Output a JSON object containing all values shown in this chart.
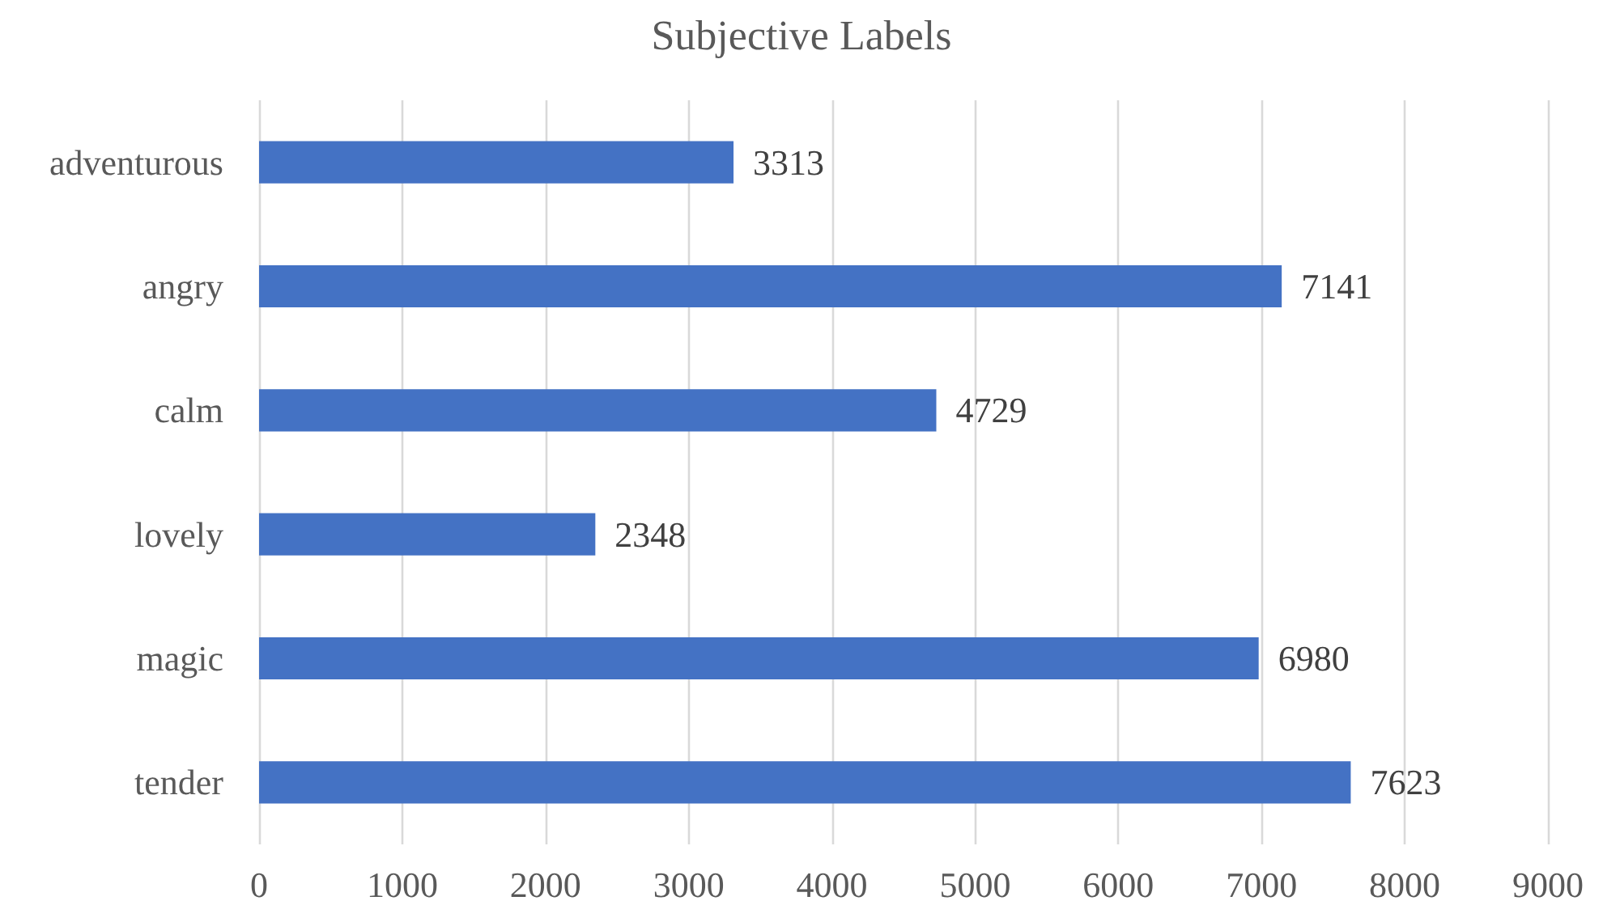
{
  "chart_data": {
    "type": "bar",
    "title": "Subjective Labels",
    "orientation": "horizontal",
    "categories": [
      "adventurous",
      "angry",
      "calm",
      "lovely",
      "magic",
      "tender"
    ],
    "values": [
      3313,
      7141,
      4729,
      2348,
      6980,
      7623
    ],
    "color": "#4472c4",
    "xlim": [
      0,
      9000
    ],
    "xticks": [
      0,
      1000,
      2000,
      3000,
      4000,
      5000,
      6000,
      7000,
      8000,
      9000
    ],
    "grid": "x",
    "data_labels": true
  }
}
